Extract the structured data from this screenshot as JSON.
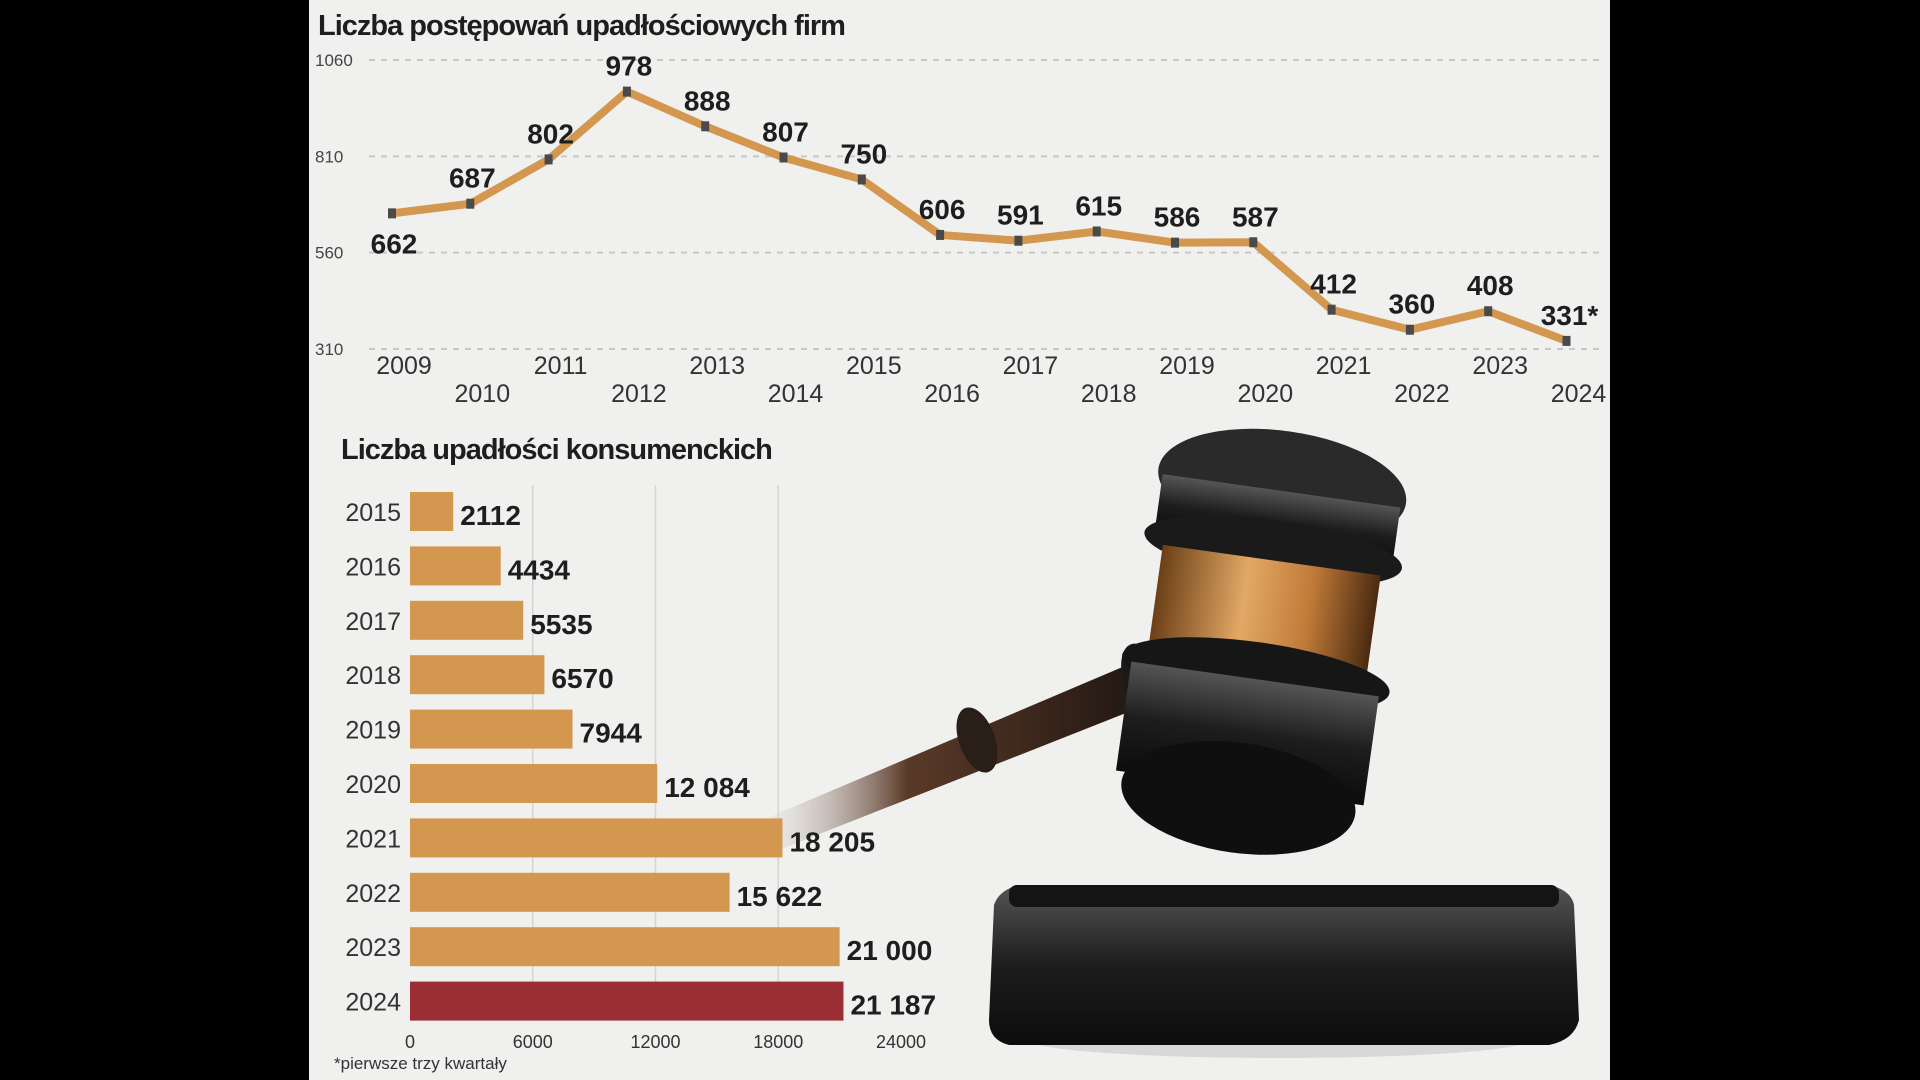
{
  "chart_data": [
    {
      "type": "line",
      "title": "Liczba postępowań upadłościowych firm",
      "x": [
        "2009",
        "2010",
        "2011",
        "2012",
        "2013",
        "2014",
        "2015",
        "2016",
        "2017",
        "2018",
        "2019",
        "2020",
        "2021",
        "2022",
        "2023",
        "2024"
      ],
      "values": [
        662,
        687,
        802,
        978,
        888,
        807,
        750,
        606,
        591,
        615,
        586,
        587,
        412,
        360,
        408,
        331
      ],
      "data_labels": [
        "662",
        "687",
        "802",
        "978",
        "888",
        "807",
        "750",
        "606",
        "591",
        "615",
        "586",
        "587",
        "412",
        "360",
        "408",
        "331*"
      ],
      "yticks": [
        "1060",
        "810",
        "560",
        "310"
      ],
      "ylim": [
        310,
        1060
      ],
      "grid": true,
      "color": "#d4974f",
      "marker_color": "#4a4a4a"
    },
    {
      "type": "bar",
      "orientation": "horizontal",
      "title": "Liczba upadłości konsumenckich",
      "categories": [
        "2015",
        "2016",
        "2017",
        "2018",
        "2019",
        "2020",
        "2021",
        "2022",
        "2023",
        "2024"
      ],
      "values": [
        2112,
        4434,
        5535,
        6570,
        7944,
        12084,
        18205,
        15622,
        21000,
        21187
      ],
      "data_labels": [
        "2112",
        "4434",
        "5535",
        "6570",
        "7944",
        "12 084",
        "18 205",
        "15 622",
        "21 000",
        "21 187"
      ],
      "xticks": [
        "0",
        "6000",
        "12000",
        "18000",
        "24000"
      ],
      "xlim": [
        0,
        24000
      ],
      "grid": true,
      "bar_color": "#d4974f",
      "highlight_color": "#9b2f35",
      "highlight_category": "2024"
    }
  ],
  "footnote": "*pierwsze trzy kwartały"
}
